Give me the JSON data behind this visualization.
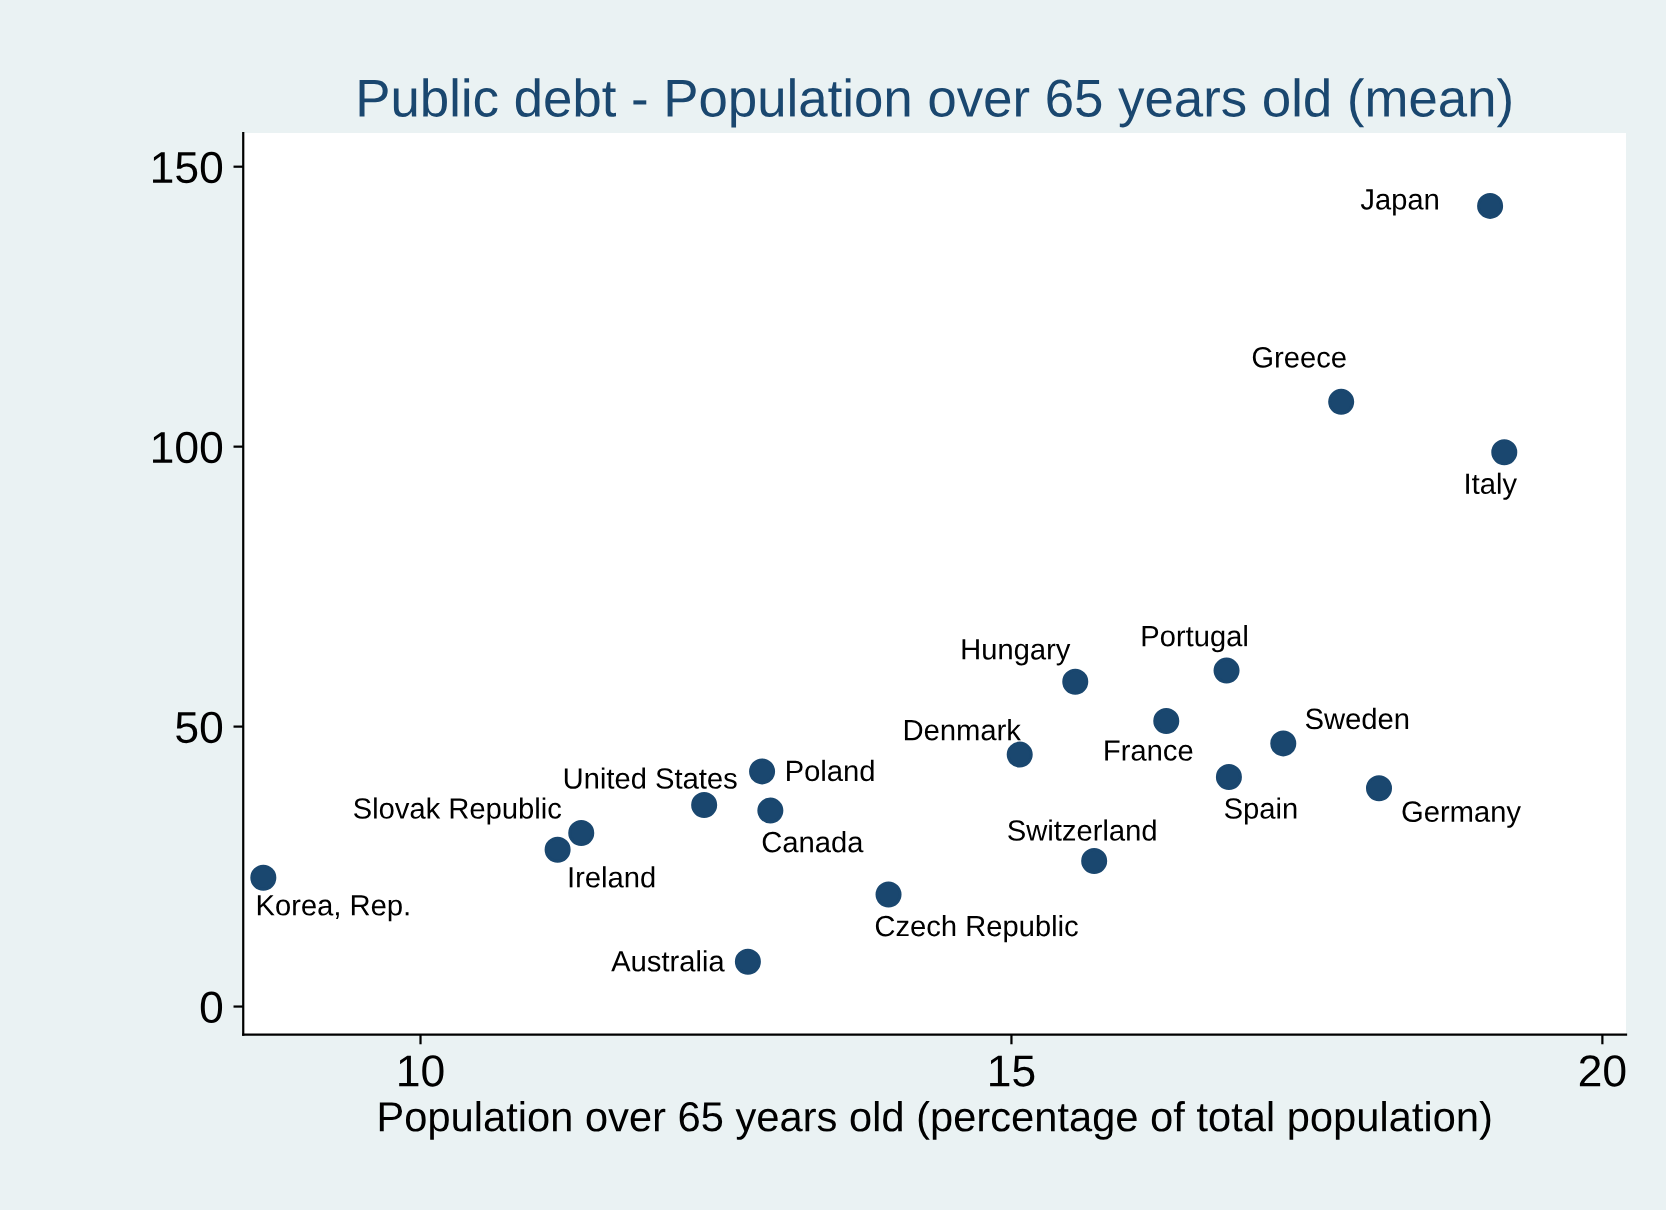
{
  "chart_data": {
    "type": "scatter",
    "title": "Public debt - Population over 65 years old (mean)",
    "xlabel": "Population over 65 years old (percentage of total population)",
    "series": [
      {
        "color": "#1a476f",
        "x": [
          19.05,
          17.79,
          19.17,
          16.82,
          15.54,
          16.31,
          17.3,
          15.07,
          16.84,
          18.11,
          12.89,
          12.4,
          12.96,
          11.36,
          11.16,
          15.7,
          8.67,
          13.96,
          12.77
        ],
        "values": [
          143,
          108,
          99,
          60,
          58,
          51,
          47,
          45,
          41,
          39,
          42,
          36,
          35,
          31,
          28,
          26,
          23,
          20,
          8
        ]
      }
    ],
    "annotations": [
      {
        "text": "Japan",
        "x": 19.05,
        "y": 143
      },
      {
        "text": "Greece",
        "x": 17.79,
        "y": 108
      },
      {
        "text": "Italy",
        "x": 19.17,
        "y": 99
      },
      {
        "text": "Portugal",
        "x": 16.82,
        "y": 60
      },
      {
        "text": "Hungary",
        "x": 15.54,
        "y": 58
      },
      {
        "text": "France",
        "x": 16.31,
        "y": 51
      },
      {
        "text": "Sweden",
        "x": 17.3,
        "y": 47
      },
      {
        "text": "Denmark",
        "x": 15.07,
        "y": 45
      },
      {
        "text": "Spain",
        "x": 16.84,
        "y": 41
      },
      {
        "text": "Germany",
        "x": 18.11,
        "y": 39
      },
      {
        "text": "Poland",
        "x": 12.89,
        "y": 42
      },
      {
        "text": "United States",
        "x": 12.4,
        "y": 36
      },
      {
        "text": "Canada",
        "x": 12.96,
        "y": 35
      },
      {
        "text": "Slovak Republic",
        "x": 11.36,
        "y": 31
      },
      {
        "text": "Ireland",
        "x": 11.16,
        "y": 28
      },
      {
        "text": "Switzerland",
        "x": 15.7,
        "y": 26
      },
      {
        "text": "Korea, Rep.",
        "x": 8.67,
        "y": 23
      },
      {
        "text": "Czech Republic",
        "x": 13.96,
        "y": 20
      },
      {
        "text": "Australia",
        "x": 12.77,
        "y": 8
      }
    ],
    "xlim": [
      8.5,
      20.2
    ],
    "ylim": [
      -5,
      156
    ],
    "xticks": [
      10,
      15,
      20
    ],
    "yticks": [
      0,
      50,
      100,
      150
    ],
    "marker": "circle",
    "grid": false,
    "legend": false
  }
}
